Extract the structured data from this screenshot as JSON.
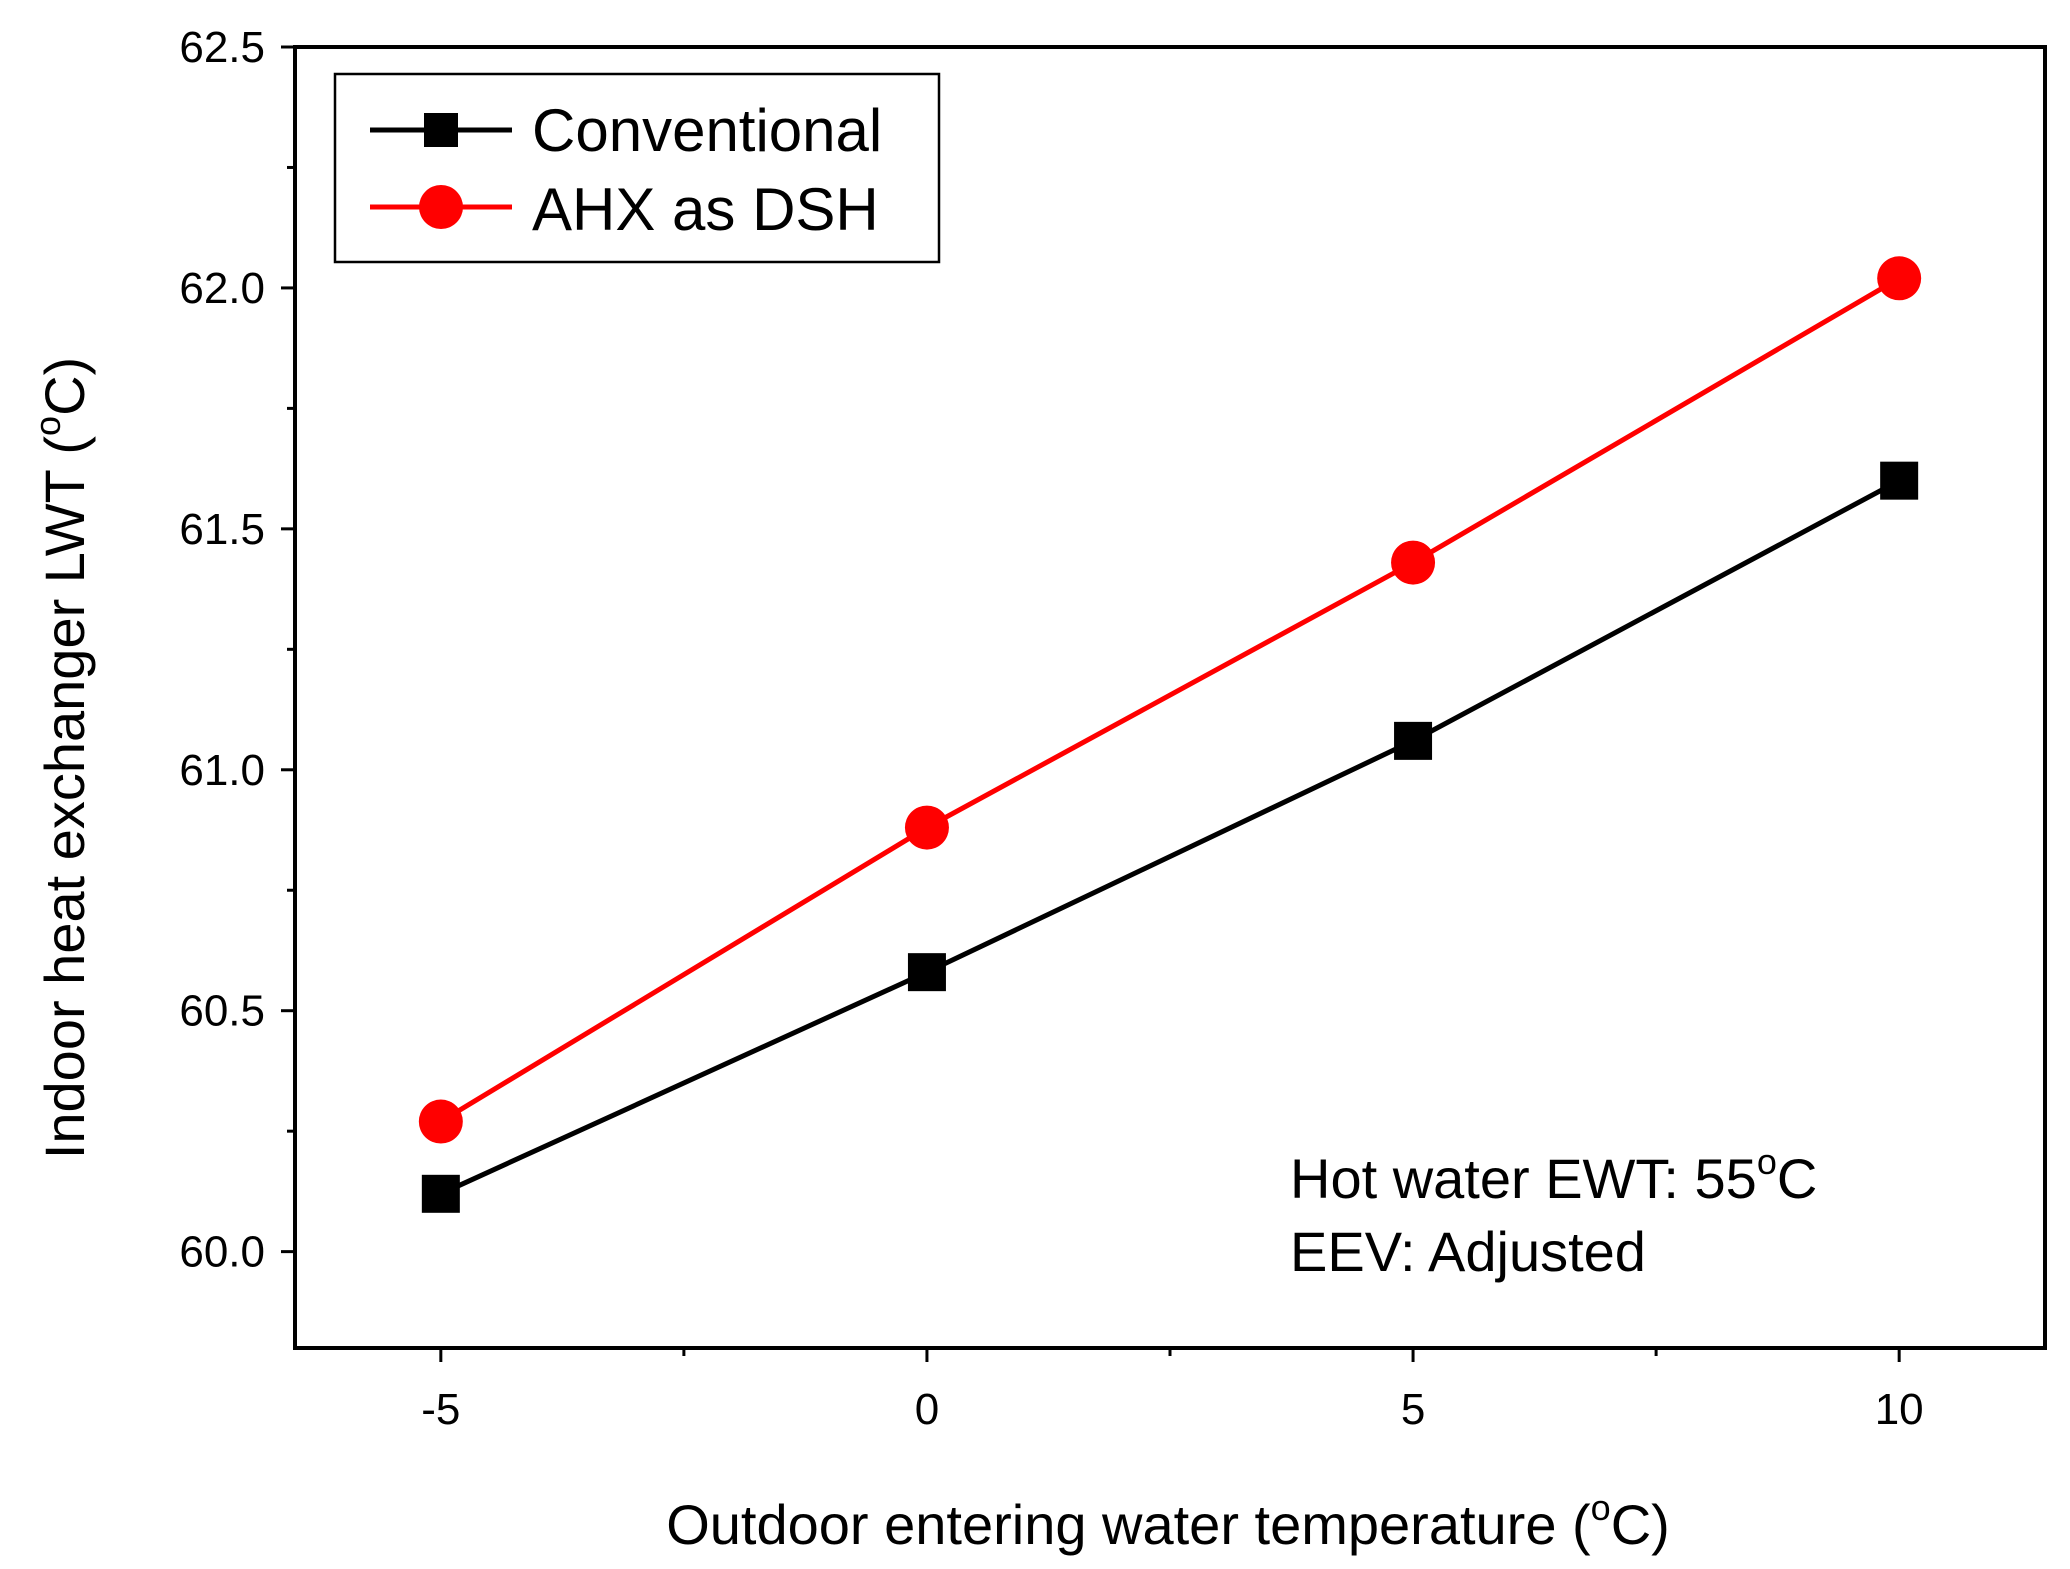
{
  "chart_data": {
    "type": "line",
    "title": "",
    "xlabel": "Outdoor entering water temperature (",
    "xlabel_unit_sup": "o",
    "xlabel_unit_tail": "C)",
    "ylabel": "Indoor heat exchanger LWT (",
    "ylabel_unit_sup": "o",
    "ylabel_unit_tail": "C)",
    "x": [
      -5,
      0,
      5,
      10
    ],
    "xlim": [
      -6.5,
      11.5
    ],
    "ylim": [
      59.8,
      62.5
    ],
    "x_ticks": [
      -5,
      0,
      5,
      10
    ],
    "x_tick_labels": [
      "-5",
      "0",
      "5",
      "10"
    ],
    "x_minor_ticks": [
      -2.5,
      2.5,
      7.5
    ],
    "y_ticks": [
      60.0,
      60.5,
      61.0,
      61.5,
      62.0,
      62.5
    ],
    "y_tick_labels": [
      "60.0",
      "60.5",
      "61.0",
      "61.5",
      "62.0",
      "62.5"
    ],
    "y_minor_ticks": [
      60.25,
      60.75,
      61.25,
      61.75,
      62.25
    ],
    "grid": false,
    "legend_position": "top-left",
    "series": [
      {
        "name": "Conventional",
        "marker": "square",
        "color": "#000000",
        "values": [
          60.12,
          60.58,
          61.06,
          61.6
        ]
      },
      {
        "name": "AHX as DSH",
        "marker": "circle",
        "color": "#ff0000",
        "values": [
          60.27,
          60.88,
          61.43,
          62.02
        ]
      }
    ],
    "annotations": {
      "line1_prefix": "Hot water EWT: 55",
      "line1_sup": "o",
      "line1_tail": "C",
      "line2": "EEV: Adjusted"
    }
  }
}
